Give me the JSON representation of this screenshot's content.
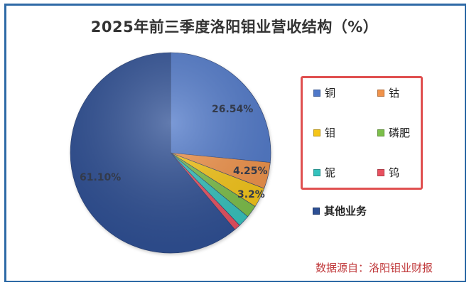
{
  "title": "2025年前三季度洛阳钼业营收结构（%）",
  "source_note": "数据源自：洛阳钼业财报",
  "legend": {
    "items": [
      {
        "label": "铜",
        "color": "#4f78c9"
      },
      {
        "label": "钴",
        "color": "#f0924a"
      },
      {
        "label": "钼",
        "color": "#f5c518"
      },
      {
        "label": "磷肥",
        "color": "#7cbf4a"
      },
      {
        "label": "铌",
        "color": "#34c2bd"
      },
      {
        "label": "钨",
        "color": "#e8505f"
      }
    ],
    "other": {
      "label": "其他业务",
      "color": "#2d4f94"
    }
  },
  "data_labels": {
    "copper": "26.54%",
    "cobalt": "4.25%",
    "molybdenum": "3.2%",
    "other": "61.10%"
  },
  "chart_data": {
    "type": "pie",
    "title": "2025年前三季度洛阳钼业营收结构（%）",
    "categories": [
      "铜",
      "钴",
      "钼",
      "磷肥",
      "铌",
      "钨",
      "其他业务"
    ],
    "values": [
      26.54,
      4.25,
      3.2,
      2.0,
      1.9,
      1.01,
      61.1
    ],
    "labeled_values": {
      "铜": 26.54,
      "钴": 4.25,
      "钼": 3.2,
      "其他业务": 61.1
    },
    "colors": [
      "#4f78c9",
      "#f0924a",
      "#f5c518",
      "#7cbf4a",
      "#34c2bd",
      "#e8505f",
      "#2d4f94"
    ],
    "start_angle": "12 o'clock, clockwise",
    "legend_position": "right",
    "annotation": "数据源自：洛阳钼业财报"
  }
}
